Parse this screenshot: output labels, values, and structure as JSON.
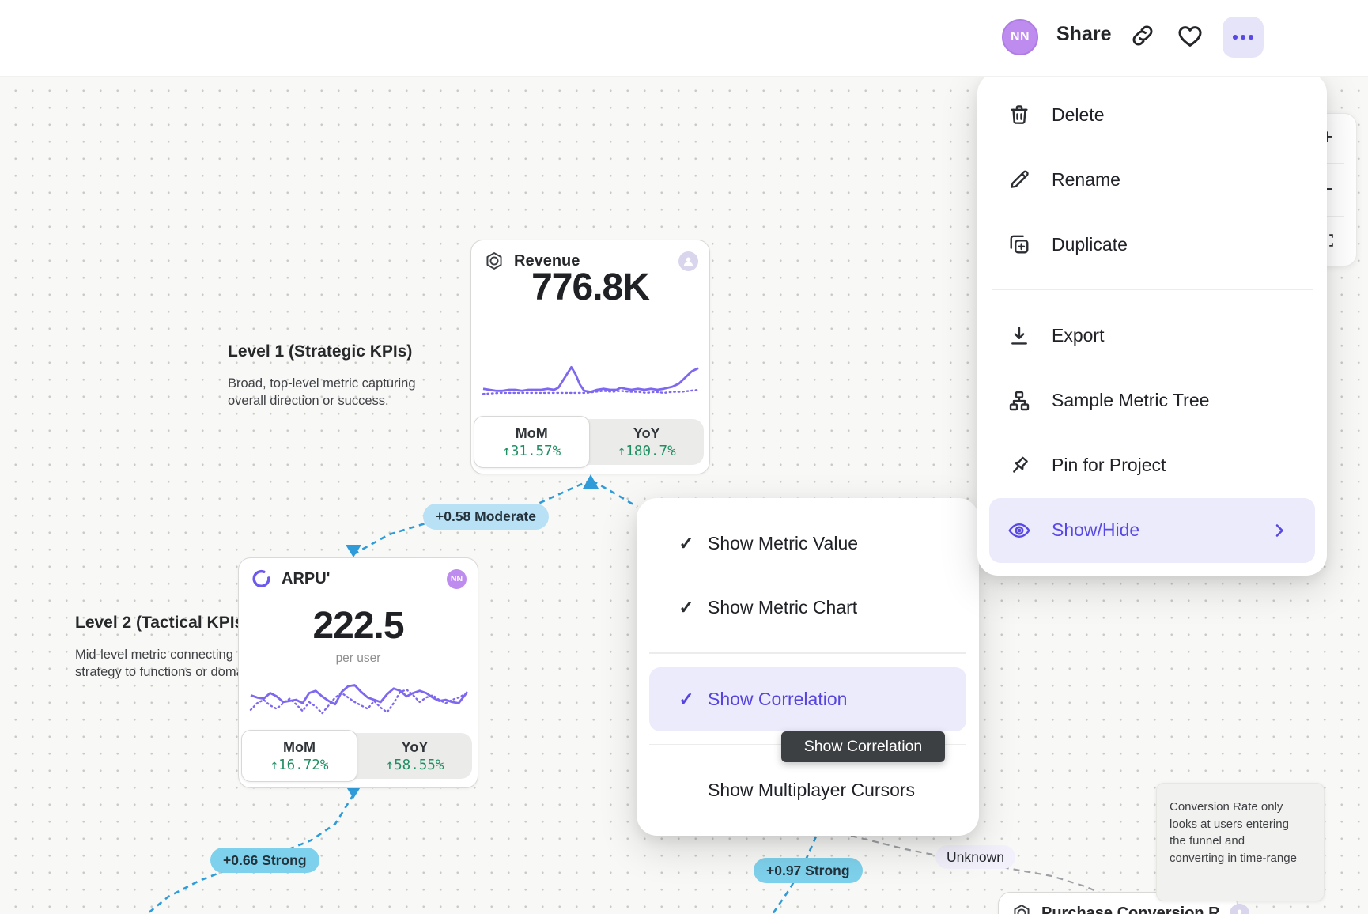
{
  "header": {
    "avatar_initials": "NN",
    "share_label": "Share"
  },
  "icons": {
    "check": "✓",
    "chevron_right": "›",
    "zoom_in": "+",
    "zoom_out": "−"
  },
  "context_menu": {
    "items": [
      {
        "label": "Delete"
      },
      {
        "label": "Rename"
      },
      {
        "label": "Duplicate"
      },
      {
        "label": "Export"
      },
      {
        "label": "Sample Metric Tree"
      },
      {
        "label": "Pin for Project"
      },
      {
        "label": "Show/Hide",
        "highlighted": true
      }
    ]
  },
  "submenu": {
    "items": [
      {
        "label": "Show Metric Value",
        "checked": true
      },
      {
        "label": "Show Metric Chart",
        "checked": true
      },
      {
        "label": "Show Correlation",
        "checked": true,
        "highlighted": true
      },
      {
        "label": "Show Multiplayer Cursors",
        "checked": false
      }
    ],
    "tooltip": "Show Correlation"
  },
  "canvas": {
    "level1": {
      "title": "Level 1 (Strategic KPIs)",
      "description": "Broad, top-level metric capturing\noverall direction or success."
    },
    "level2": {
      "title": "Level 2 (Tactical KPIs",
      "description": "Mid-level metric connecting\nstrategy to functions or doma"
    },
    "badges": {
      "revenue_arpu": "+0.58 Moderate",
      "arpu_child": "+0.66 Strong",
      "revenue_purchase": "+0.97 Strong",
      "unknown": "Unknown"
    },
    "note": "Conversion Rate only\nlooks at users entering\nthe funnel and\nconverting in time-range",
    "cards": {
      "revenue": {
        "title": "Revenue",
        "value": "776.8K",
        "tabs": [
          {
            "label": "MoM",
            "value": "↑31.57%"
          },
          {
            "label": "YoY",
            "value": "↑180.7%"
          }
        ],
        "spark": {
          "solid": [
            [
              0,
              29
            ],
            [
              3,
              30
            ],
            [
              6,
              31
            ],
            [
              9,
              31
            ],
            [
              12,
              30
            ],
            [
              15,
              30
            ],
            [
              18,
              31
            ],
            [
              21,
              30
            ],
            [
              24,
              30
            ],
            [
              27,
              30
            ],
            [
              30,
              29
            ],
            [
              33,
              30
            ],
            [
              35,
              28
            ],
            [
              38,
              18
            ],
            [
              41,
              8
            ],
            [
              43,
              15
            ],
            [
              45,
              25
            ],
            [
              47,
              31
            ],
            [
              50,
              32
            ],
            [
              53,
              30
            ],
            [
              56,
              29
            ],
            [
              59,
              30
            ],
            [
              62,
              30
            ],
            [
              64,
              28
            ],
            [
              66,
              29
            ],
            [
              69,
              30
            ],
            [
              72,
              29
            ],
            [
              75,
              30
            ],
            [
              78,
              29
            ],
            [
              81,
              30
            ],
            [
              84,
              29
            ],
            [
              86,
              28
            ],
            [
              88,
              27
            ],
            [
              91,
              24
            ],
            [
              94,
              18
            ],
            [
              97,
              12
            ],
            [
              100,
              9
            ]
          ],
          "dotted": [
            [
              0,
              34
            ],
            [
              8,
              33
            ],
            [
              16,
              33
            ],
            [
              24,
              33
            ],
            [
              32,
              33
            ],
            [
              40,
              33
            ],
            [
              48,
              33
            ],
            [
              52,
              32
            ],
            [
              56,
              31
            ],
            [
              60,
              32
            ],
            [
              64,
              31
            ],
            [
              68,
              32
            ],
            [
              72,
              32
            ],
            [
              76,
              33
            ],
            [
              80,
              32
            ],
            [
              84,
              33
            ],
            [
              88,
              32
            ],
            [
              92,
              32
            ],
            [
              96,
              31
            ],
            [
              100,
              30
            ]
          ]
        }
      },
      "arpu": {
        "title": "ARPU'",
        "value": "222.5",
        "unit": "per user",
        "owner_initials": "NN",
        "tabs": [
          {
            "label": "MoM",
            "value": "↑16.72%"
          },
          {
            "label": "YoY",
            "value": "↑58.55%"
          }
        ],
        "spark": {
          "solid": [
            [
              0,
              15
            ],
            [
              3,
              17
            ],
            [
              6,
              18
            ],
            [
              9,
              13
            ],
            [
              12,
              16
            ],
            [
              15,
              21
            ],
            [
              18,
              20
            ],
            [
              21,
              19
            ],
            [
              24,
              22
            ],
            [
              27,
              13
            ],
            [
              30,
              11
            ],
            [
              33,
              16
            ],
            [
              36,
              20
            ],
            [
              39,
              23
            ],
            [
              42,
              12
            ],
            [
              45,
              7
            ],
            [
              48,
              6
            ],
            [
              51,
              12
            ],
            [
              54,
              17
            ],
            [
              57,
              19
            ],
            [
              60,
              21
            ],
            [
              63,
              14
            ],
            [
              66,
              9
            ],
            [
              69,
              11
            ],
            [
              72,
              16
            ],
            [
              75,
              13
            ],
            [
              78,
              11
            ],
            [
              81,
              13
            ],
            [
              84,
              17
            ],
            [
              87,
              20
            ],
            [
              90,
              19
            ],
            [
              93,
              21
            ],
            [
              96,
              22
            ],
            [
              98,
              17
            ],
            [
              100,
              12
            ]
          ],
          "dotted": [
            [
              0,
              28
            ],
            [
              3,
              22
            ],
            [
              6,
              19
            ],
            [
              9,
              24
            ],
            [
              12,
              27
            ],
            [
              15,
              22
            ],
            [
              18,
              18
            ],
            [
              21,
              23
            ],
            [
              24,
              29
            ],
            [
              27,
              21
            ],
            [
              30,
              25
            ],
            [
              33,
              31
            ],
            [
              36,
              24
            ],
            [
              39,
              17
            ],
            [
              42,
              13
            ],
            [
              45,
              17
            ],
            [
              48,
              21
            ],
            [
              51,
              24
            ],
            [
              54,
              27
            ],
            [
              57,
              20
            ],
            [
              60,
              26
            ],
            [
              63,
              30
            ],
            [
              66,
              22
            ],
            [
              69,
              12
            ],
            [
              72,
              10
            ],
            [
              75,
              15
            ],
            [
              78,
              21
            ],
            [
              81,
              17
            ],
            [
              84,
              15
            ],
            [
              87,
              19
            ],
            [
              90,
              22
            ],
            [
              93,
              19
            ],
            [
              96,
              17
            ],
            [
              100,
              13
            ]
          ]
        }
      },
      "purchase": {
        "title": "Purchase Conversion R"
      }
    }
  },
  "colors": {
    "accent": "#5849E6",
    "green": "#1F8F63",
    "spark_purple": "#7D68F0",
    "correlation_blue": "#2F9BD8",
    "badge_moderate_bg": "#B9E1F5",
    "badge_strong_bg": "#7ED1EC",
    "tooltip_bg": "#3D4043"
  }
}
